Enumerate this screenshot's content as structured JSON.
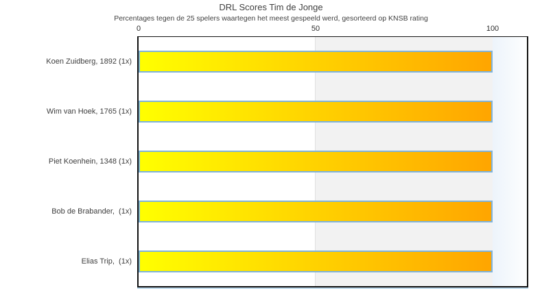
{
  "chart_data": {
    "type": "bar",
    "orientation": "horizontal",
    "title": "DRL Scores Tim de Jonge",
    "subtitle": "Percentages tegen de 25 spelers waartegen het meest gespeeld werd, gesorteerd op KNSB rating",
    "categories": [
      "Koen Zuidberg, 1892 (1x)",
      "Wim van Hoek, 1765 (1x)",
      "Piet Koenhein, 1348 (1x)",
      "Bob de Brabander,  (1x)",
      "Elias Trip,  (1x)"
    ],
    "values": [
      100,
      100,
      100,
      100,
      100
    ],
    "x_ticks": [
      0,
      50,
      100
    ],
    "xlim": [
      0,
      110
    ],
    "xlabel": "",
    "ylabel": "",
    "legend": "none",
    "grid": "off",
    "colors": {
      "bar_gradient_start": "#ffff00",
      "bar_gradient_end": "#ffa500",
      "bar_border": "#7db3dd",
      "band_0_50": "#ffffff",
      "band_50_100": "#f2f2f2",
      "band_divider": "#e0e0e0",
      "band_over_100_start": "#edf4fb",
      "band_over_100_end": "#fdfefe",
      "plot_border": "#111111",
      "axis_underline": "#b9d7ea",
      "title_text": "#3f3f3f",
      "tick_text": "#2b2b2b",
      "label_text": "#3d3d3d"
    }
  }
}
